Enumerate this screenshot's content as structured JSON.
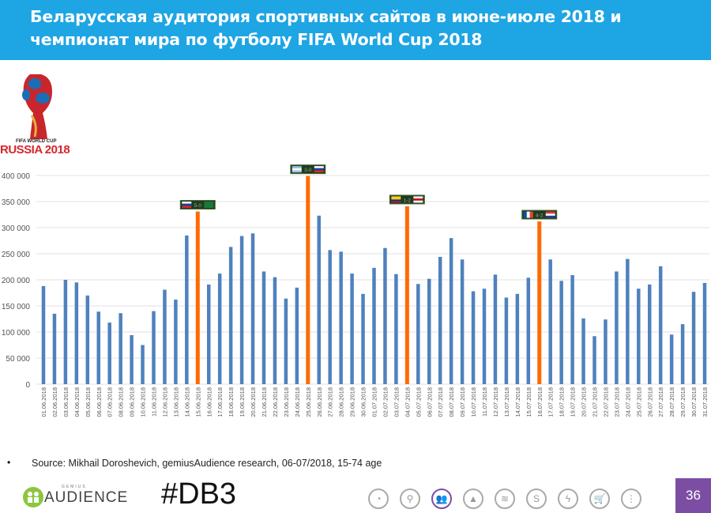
{
  "header": {
    "title_line1": "Беларусская  аудитория спортивных сайтов в июне-июле 2018 и",
    "title_line2": "чемпионат мира по футболу FIFA World Cup 2018"
  },
  "logo": {
    "line1": "FIFA WORLD CUP",
    "line2": "RUSSIA 2018"
  },
  "footer": {
    "bullet": "•",
    "source": "Source: Mikhail Doroshevich, gemiusAudience research,  06-07/2018, 15-74 age",
    "brand_small": "GEMIUS",
    "brand": "AUDIENCE",
    "hashtag": "#DB3",
    "page_number": "36",
    "icons": [
      "whistle-icon",
      "location-pin-icon",
      "audience-icon",
      "mountain-icon",
      "wifi-icon",
      "s-icon",
      "lightning-icon",
      "cart-icon",
      "traffic-light-icon"
    ],
    "active_icon": 2,
    "accent": "#7c4ea3"
  },
  "chart_data": {
    "type": "bar",
    "title": "",
    "xlabel": "",
    "ylabel": "",
    "ylim": [
      0,
      400000
    ],
    "grid": true,
    "yticks": [
      "0",
      "50 000",
      "100 000",
      "150 000",
      "200 000",
      "250 000",
      "300 000",
      "350 000",
      "400 000"
    ],
    "colors": {
      "normal": "#4f81bd",
      "match": "#ff6a00"
    },
    "categories": [
      "01.06.2018",
      "02.06.2018",
      "03.06.2018",
      "04.06.2018",
      "05.06.2018",
      "06.06.2018",
      "07.06.2018",
      "08.06.2018",
      "09.06.2018",
      "10.06.2018",
      "11.06.2018",
      "12.06.2018",
      "13.06.2018",
      "14.06.2018",
      "15.06.2018",
      "16.06.2018",
      "17.06.2018",
      "18.06.2018",
      "19.06.2018",
      "20.06.2018",
      "21.06.2018",
      "22.06.2018",
      "23.06.2018",
      "24.06.2018",
      "25.06.2018",
      "26.06.2018",
      "27.06.2018",
      "28.06.2018",
      "29.06.2018",
      "30.06.2018",
      "01.07.2018",
      "02.07.2018",
      "03.07.2018",
      "04.07.2018",
      "05.07.2018",
      "06.07.2018",
      "07.07.2018",
      "08.07.2018",
      "09.07.2018",
      "10.07.2018",
      "11.07.2018",
      "12.07.2018",
      "13.07.2018",
      "14.07.2018",
      "15.07.2018",
      "16.07.2018",
      "17.07.2018",
      "18.07.2018",
      "19.07.2018",
      "20.07.2018",
      "21.07.2018",
      "22.07.2018",
      "23.07.2018",
      "24.07.2018",
      "25.07.2018",
      "26.07.2018",
      "27.07.2018",
      "28.07.2018",
      "29.07.2018",
      "30.07.2018",
      "31.07.2018"
    ],
    "values": [
      188000,
      135000,
      200000,
      195000,
      170000,
      139000,
      118000,
      136000,
      94000,
      75000,
      140000,
      181000,
      162000,
      285000,
      331000,
      191000,
      212000,
      263000,
      284000,
      289000,
      216000,
      205000,
      164000,
      185000,
      399000,
      323000,
      257000,
      254000,
      212000,
      173000,
      223000,
      261000,
      211000,
      341000,
      192000,
      202000,
      244000,
      280000,
      239000,
      178000,
      183000,
      210000,
      166000,
      173000,
      204000,
      312000,
      239000,
      198000,
      209000,
      126000,
      92000,
      124000,
      216000,
      240000,
      183000,
      191000,
      226000,
      95000,
      115000,
      177000,
      194000
    ],
    "annotations": [
      {
        "index": 14,
        "score": "5-0",
        "flags": [
          "russia",
          "saudi-arabia"
        ]
      },
      {
        "index": 24,
        "score": "3-0",
        "flags": [
          "uruguay",
          "russia"
        ]
      },
      {
        "index": 33,
        "score": "1-2",
        "flags": [
          "colombia",
          "england"
        ]
      },
      {
        "index": 45,
        "score": "4-2",
        "flags": [
          "france",
          "croatia"
        ]
      }
    ]
  }
}
